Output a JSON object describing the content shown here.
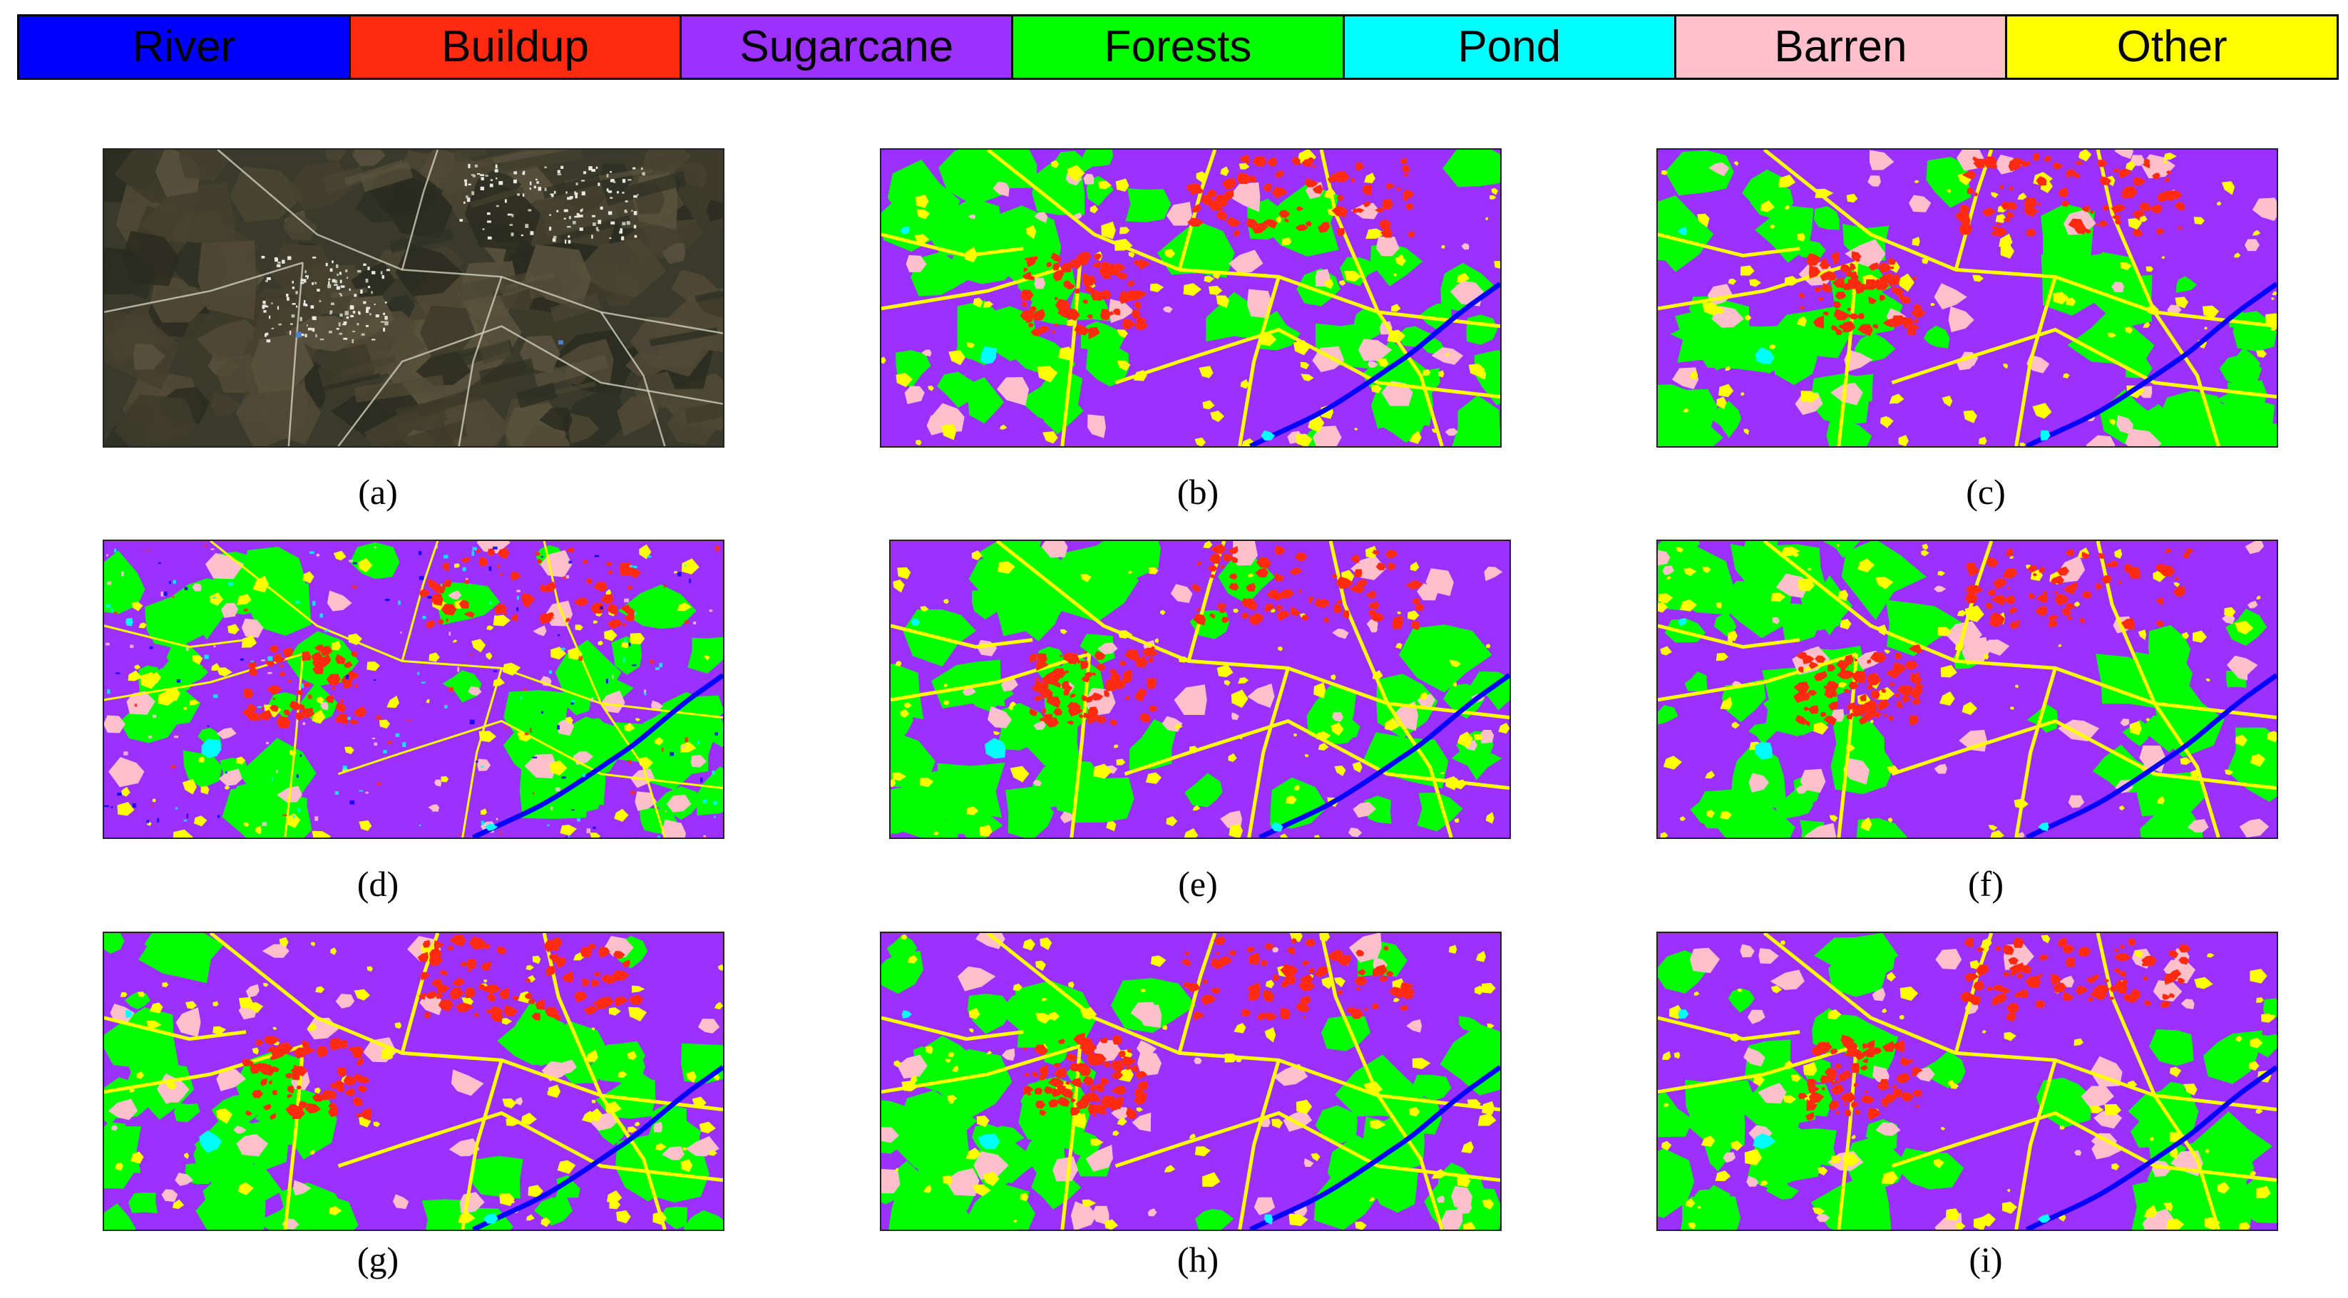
{
  "legend": [
    {
      "label": "River",
      "color": "#0000ff"
    },
    {
      "label": "Buildup",
      "color": "#ff2a10"
    },
    {
      "label": "Sugarcane",
      "color": "#9b30ff"
    },
    {
      "label": "Forests",
      "color": "#00ff00"
    },
    {
      "label": "Pond",
      "color": "#00ffff"
    },
    {
      "label": "Barren",
      "color": "#ffc0cb"
    },
    {
      "label": "Other",
      "color": "#ffff00"
    }
  ],
  "panels": [
    {
      "caption": "(a)",
      "kind": "satellite"
    },
    {
      "caption": "(b)",
      "kind": "classified"
    },
    {
      "caption": "(c)",
      "kind": "classified"
    },
    {
      "caption": "(d)",
      "kind": "classified"
    },
    {
      "caption": "(e)",
      "kind": "classified"
    },
    {
      "caption": "(f)",
      "kind": "classified"
    },
    {
      "caption": "(g)",
      "kind": "classified"
    },
    {
      "caption": "(h)",
      "kind": "classified"
    },
    {
      "caption": "(i)",
      "kind": "classified"
    }
  ]
}
